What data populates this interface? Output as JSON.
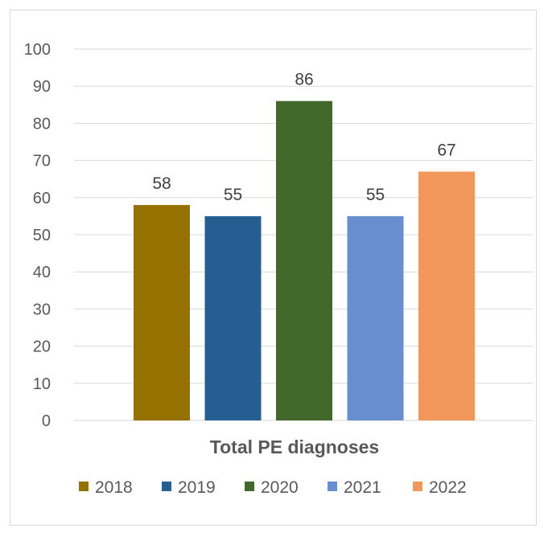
{
  "chart_data": {
    "type": "bar",
    "categories": [
      "Total PE diagnoses"
    ],
    "series": [
      {
        "name": "2018",
        "values": [
          58
        ],
        "color": "#957200"
      },
      {
        "name": "2019",
        "values": [
          55
        ],
        "color": "#255E91"
      },
      {
        "name": "2020",
        "values": [
          86
        ],
        "color": "#43682B"
      },
      {
        "name": "2021",
        "values": [
          55
        ],
        "color": "#698ED0"
      },
      {
        "name": "2022",
        "values": [
          67
        ],
        "color": "#F1975A"
      }
    ],
    "ylim": [
      0,
      100
    ],
    "yticks": [
      0,
      10,
      20,
      30,
      40,
      50,
      60,
      70,
      80,
      90,
      100
    ],
    "grid": true,
    "gridline_color": "#d9d9d9",
    "legend_position": "bottom",
    "data_labels": true
  }
}
